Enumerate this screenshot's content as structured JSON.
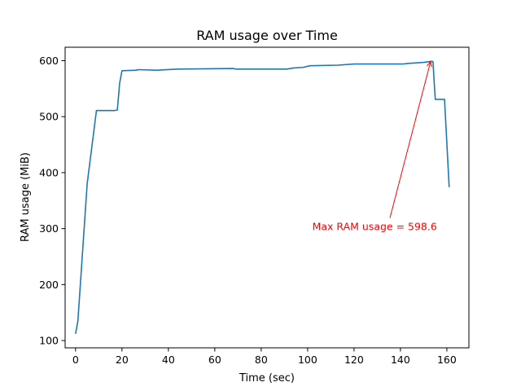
{
  "chart_data": {
    "type": "line",
    "title": "RAM usage over Time",
    "xlabel": "Time (sec)",
    "ylabel": "RAM usage (MiB)",
    "xlim": [
      -4.5,
      169.5
    ],
    "ylim": [
      87,
      624
    ],
    "x_ticks": [
      0,
      20,
      40,
      60,
      80,
      100,
      120,
      140,
      160
    ],
    "y_ticks": [
      100,
      200,
      300,
      400,
      500,
      600
    ],
    "grid": false,
    "series": [
      {
        "color": "#1f77b4",
        "points": [
          [
            0,
            112
          ],
          [
            1,
            135
          ],
          [
            5,
            380
          ],
          [
            9,
            511
          ],
          [
            17,
            511
          ],
          [
            18,
            512
          ],
          [
            19,
            560
          ],
          [
            20,
            582
          ],
          [
            26,
            583
          ],
          [
            27,
            584
          ],
          [
            35,
            583
          ],
          [
            44,
            585
          ],
          [
            68,
            586
          ],
          [
            69,
            585
          ],
          [
            91,
            585
          ],
          [
            94,
            587
          ],
          [
            98,
            588
          ],
          [
            101,
            591
          ],
          [
            113,
            592
          ],
          [
            120,
            594
          ],
          [
            141,
            594
          ],
          [
            143,
            595
          ],
          [
            150,
            597
          ],
          [
            153,
            598.6
          ],
          [
            154,
            598.6
          ],
          [
            155,
            531
          ],
          [
            159,
            531
          ],
          [
            161,
            374
          ]
        ]
      }
    ],
    "annotation": {
      "text": "Max RAM usage = 598.6",
      "color": "#ff0000",
      "xy": [
        153,
        598.6
      ],
      "xytext": [
        102,
        300
      ]
    }
  }
}
